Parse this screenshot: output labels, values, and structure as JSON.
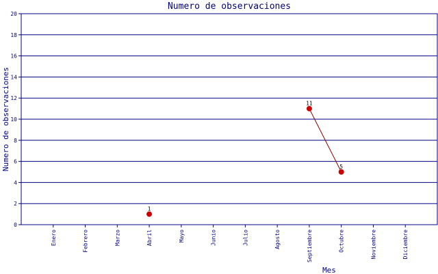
{
  "chart_data": {
    "type": "line",
    "title": "Numero de observaciones",
    "xlabel": "Mes",
    "ylabel": "Numero de observaciones",
    "categories": [
      "Enero",
      "Febrero",
      "Marzo",
      "Abril",
      "Mayo",
      "Junio",
      "Julio",
      "Agosto",
      "Septiembre",
      "Octubre",
      "Noviembre",
      "Diciembre"
    ],
    "values": [
      null,
      null,
      null,
      1,
      null,
      null,
      null,
      null,
      11,
      5,
      null,
      null
    ],
    "data_labels": [
      "",
      "",
      "",
      "1",
      "",
      "",
      "",
      "",
      "11",
      "5",
      "",
      ""
    ],
    "ylim": [
      0,
      20
    ],
    "yticks": [
      0,
      2,
      4,
      6,
      8,
      10,
      12,
      14,
      16,
      18,
      20
    ],
    "grid": "horizontal",
    "colors": {
      "axis": "#000080",
      "grid": "#000080",
      "line": "#990000",
      "marker": "#cc0000",
      "text": "#000080"
    }
  }
}
